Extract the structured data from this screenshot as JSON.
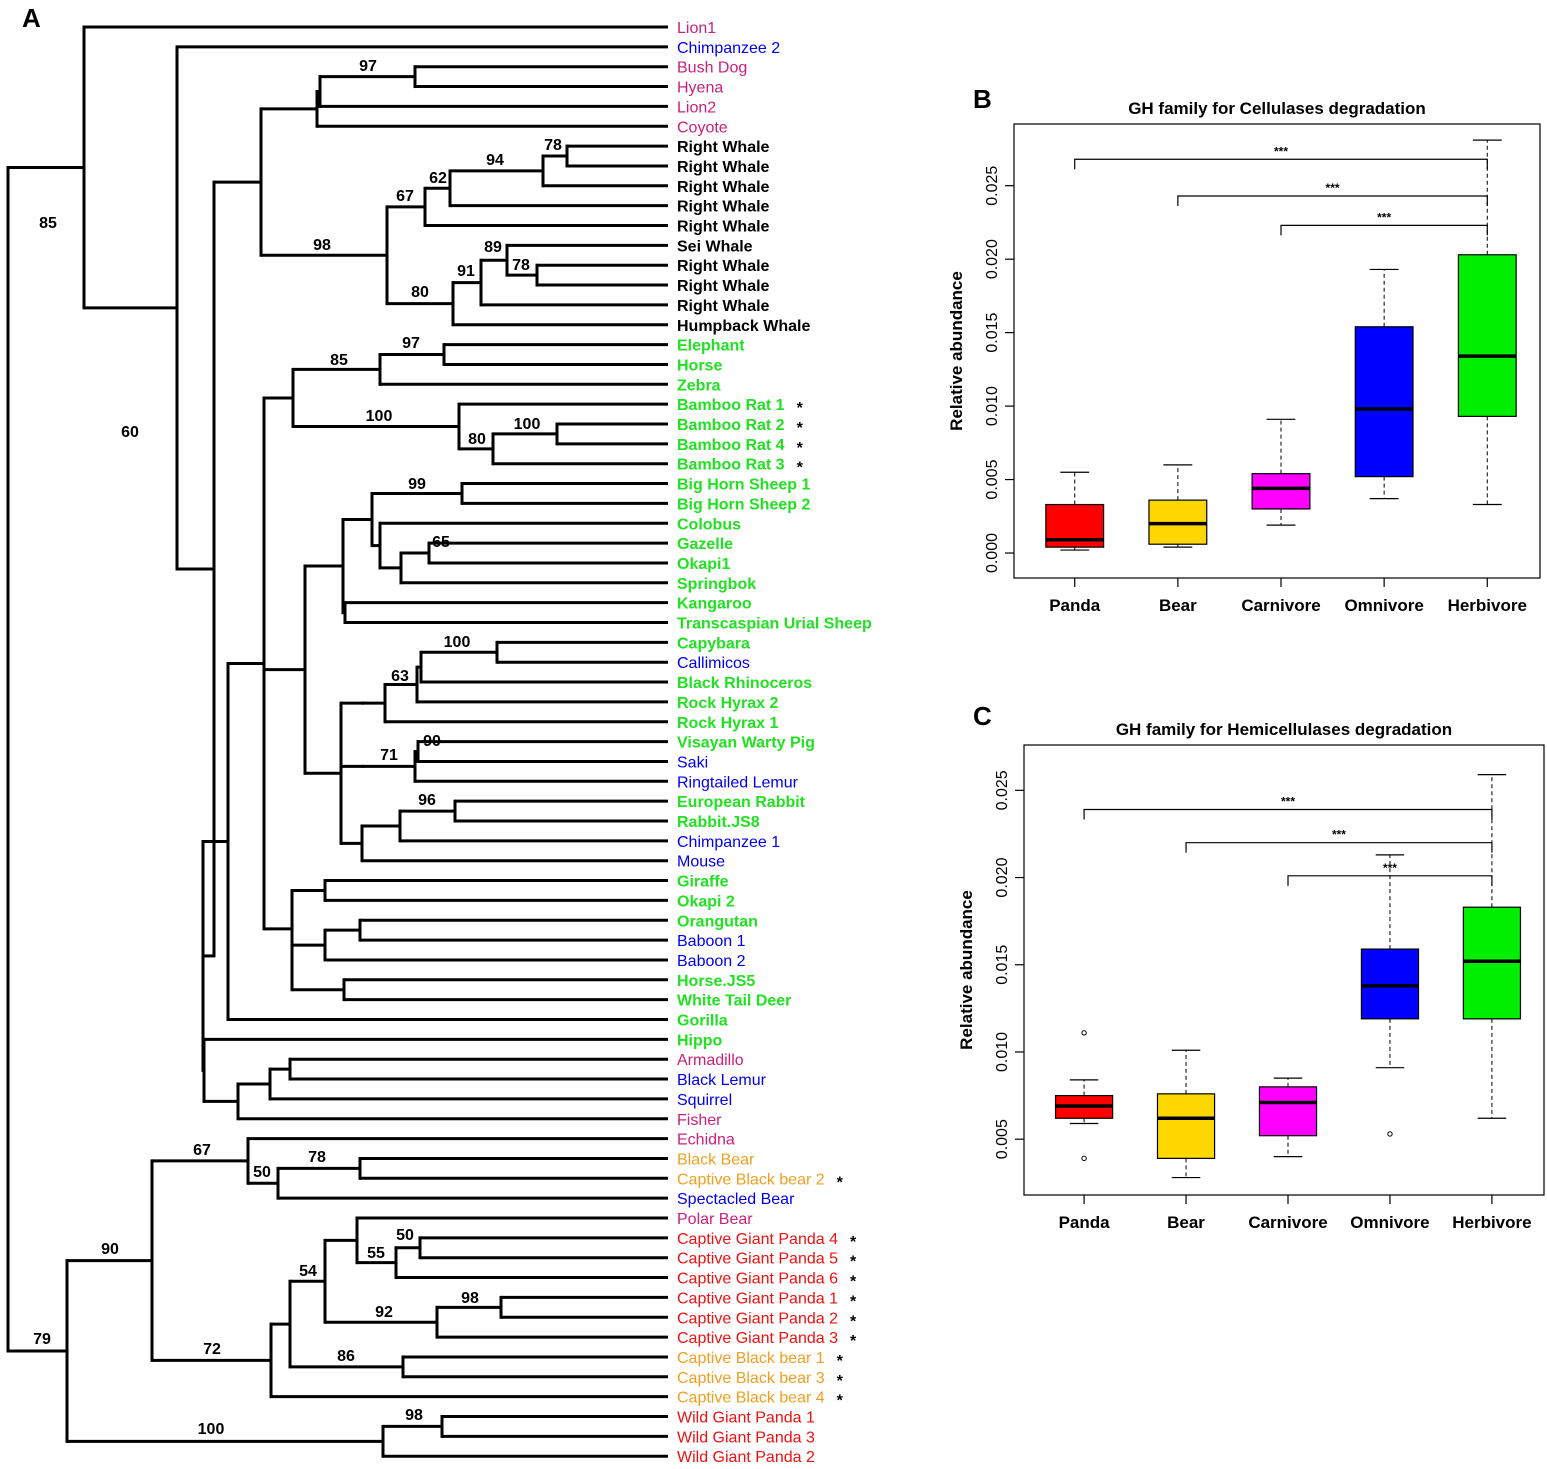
{
  "panels": {
    "a": "A",
    "b": "B",
    "c": "C"
  },
  "colors": {
    "carnivore": "#cc1f7a",
    "omnivore": "#0000ee",
    "herbivore": "#22e022",
    "panda": "#ee1111",
    "bear": "#f0a020",
    "whale": "#000000"
  },
  "tree": {
    "leaves": [
      {
        "label": "Lion1",
        "color": "#cc1f7a",
        "bold": false,
        "star": false
      },
      {
        "label": "Chimpanzee 2",
        "color": "#0000ee",
        "bold": false,
        "star": false
      },
      {
        "label": "Bush Dog",
        "color": "#cc1f7a",
        "bold": false,
        "star": false
      },
      {
        "label": "Hyena",
        "color": "#cc1f7a",
        "bold": false,
        "star": false
      },
      {
        "label": "Lion2",
        "color": "#cc1f7a",
        "bold": false,
        "star": false
      },
      {
        "label": "Coyote",
        "color": "#cc1f7a",
        "bold": false,
        "star": false
      },
      {
        "label": "Right Whale",
        "color": "#000000",
        "bold": true,
        "star": false
      },
      {
        "label": "Right Whale",
        "color": "#000000",
        "bold": true,
        "star": false
      },
      {
        "label": "Right Whale",
        "color": "#000000",
        "bold": true,
        "star": false
      },
      {
        "label": "Right Whale",
        "color": "#000000",
        "bold": true,
        "star": false
      },
      {
        "label": "Right Whale",
        "color": "#000000",
        "bold": true,
        "star": false
      },
      {
        "label": "Sei Whale",
        "color": "#000000",
        "bold": true,
        "star": false
      },
      {
        "label": "Right Whale",
        "color": "#000000",
        "bold": true,
        "star": false
      },
      {
        "label": "Right Whale",
        "color": "#000000",
        "bold": true,
        "star": false
      },
      {
        "label": "Right Whale",
        "color": "#000000",
        "bold": true,
        "star": false
      },
      {
        "label": "Humpback Whale",
        "color": "#000000",
        "bold": true,
        "star": false
      },
      {
        "label": "Elephant",
        "color": "#22e022",
        "bold": true,
        "star": false
      },
      {
        "label": "Horse",
        "color": "#22e022",
        "bold": true,
        "star": false
      },
      {
        "label": "Zebra",
        "color": "#22e022",
        "bold": true,
        "star": false
      },
      {
        "label": "Bamboo Rat 1",
        "color": "#22e022",
        "bold": true,
        "star": true
      },
      {
        "label": "Bamboo Rat 2",
        "color": "#22e022",
        "bold": true,
        "star": true
      },
      {
        "label": "Bamboo Rat 4",
        "color": "#22e022",
        "bold": true,
        "star": true
      },
      {
        "label": "Bamboo Rat 3",
        "color": "#22e022",
        "bold": true,
        "star": true
      },
      {
        "label": "Big Horn Sheep 1",
        "color": "#22e022",
        "bold": true,
        "star": false
      },
      {
        "label": "Big Horn Sheep 2",
        "color": "#22e022",
        "bold": true,
        "star": false
      },
      {
        "label": "Colobus",
        "color": "#22e022",
        "bold": true,
        "star": false
      },
      {
        "label": "Gazelle",
        "color": "#22e022",
        "bold": true,
        "star": false
      },
      {
        "label": "Okapi1",
        "color": "#22e022",
        "bold": true,
        "star": false
      },
      {
        "label": "Springbok",
        "color": "#22e022",
        "bold": true,
        "star": false
      },
      {
        "label": "Kangaroo",
        "color": "#22e022",
        "bold": true,
        "star": false
      },
      {
        "label": "Transcaspian Urial Sheep",
        "color": "#22e022",
        "bold": true,
        "star": false
      },
      {
        "label": "Capybara",
        "color": "#22e022",
        "bold": true,
        "star": false
      },
      {
        "label": "Callimicos",
        "color": "#0000ee",
        "bold": false,
        "star": false
      },
      {
        "label": "Black Rhinoceros",
        "color": "#22e022",
        "bold": true,
        "star": false
      },
      {
        "label": "Rock Hyrax 2",
        "color": "#22e022",
        "bold": true,
        "star": false
      },
      {
        "label": "Rock Hyrax 1",
        "color": "#22e022",
        "bold": true,
        "star": false
      },
      {
        "label": "Visayan Warty Pig",
        "color": "#22e022",
        "bold": true,
        "star": false
      },
      {
        "label": "Saki",
        "color": "#0000ee",
        "bold": false,
        "star": false
      },
      {
        "label": "Ringtailed Lemur",
        "color": "#0000ee",
        "bold": false,
        "star": false
      },
      {
        "label": "European Rabbit",
        "color": "#22e022",
        "bold": true,
        "star": false
      },
      {
        "label": "Rabbit.JS8",
        "color": "#22e022",
        "bold": true,
        "star": false
      },
      {
        "label": "Chimpanzee 1",
        "color": "#0000ee",
        "bold": false,
        "star": false
      },
      {
        "label": "Mouse",
        "color": "#0000ee",
        "bold": false,
        "star": false
      },
      {
        "label": "Giraffe",
        "color": "#22e022",
        "bold": true,
        "star": false
      },
      {
        "label": "Okapi 2",
        "color": "#22e022",
        "bold": true,
        "star": false
      },
      {
        "label": "Orangutan",
        "color": "#22e022",
        "bold": true,
        "star": false
      },
      {
        "label": "Baboon 1",
        "color": "#0000ee",
        "bold": false,
        "star": false
      },
      {
        "label": "Baboon 2",
        "color": "#0000ee",
        "bold": false,
        "star": false
      },
      {
        "label": "Horse.JS5",
        "color": "#22e022",
        "bold": true,
        "star": false
      },
      {
        "label": "White Tail Deer",
        "color": "#22e022",
        "bold": true,
        "star": false
      },
      {
        "label": "Gorilla",
        "color": "#22e022",
        "bold": true,
        "star": false
      },
      {
        "label": "Hippo",
        "color": "#22e022",
        "bold": true,
        "star": false
      },
      {
        "label": "Armadillo",
        "color": "#cc1f7a",
        "bold": false,
        "star": false
      },
      {
        "label": "Black Lemur",
        "color": "#0000ee",
        "bold": false,
        "star": false
      },
      {
        "label": "Squirrel",
        "color": "#0000ee",
        "bold": false,
        "star": false
      },
      {
        "label": "Fisher",
        "color": "#cc1f7a",
        "bold": false,
        "star": false
      },
      {
        "label": "Echidna",
        "color": "#cc1f7a",
        "bold": false,
        "star": false
      },
      {
        "label": "Black Bear",
        "color": "#f0a020",
        "bold": false,
        "star": false
      },
      {
        "label": "Captive Black bear 2",
        "color": "#f0a020",
        "bold": false,
        "star": true
      },
      {
        "label": "Spectacled Bear",
        "color": "#0000ee",
        "bold": false,
        "star": false
      },
      {
        "label": "Polar Bear",
        "color": "#cc1f7a",
        "bold": false,
        "star": false
      },
      {
        "label": "Captive Giant Panda 4",
        "color": "#ee1111",
        "bold": false,
        "star": true
      },
      {
        "label": "Captive Giant Panda 5",
        "color": "#ee1111",
        "bold": false,
        "star": true
      },
      {
        "label": "Captive Giant Panda 6",
        "color": "#ee1111",
        "bold": false,
        "star": true
      },
      {
        "label": "Captive Giant Panda 1",
        "color": "#ee1111",
        "bold": false,
        "star": true
      },
      {
        "label": "Captive Giant Panda 2",
        "color": "#ee1111",
        "bold": false,
        "star": true
      },
      {
        "label": "Captive Giant Panda 3",
        "color": "#ee1111",
        "bold": false,
        "star": true
      },
      {
        "label": "Captive Black bear 1",
        "color": "#f0a020",
        "bold": false,
        "star": true
      },
      {
        "label": "Captive Black bear 3",
        "color": "#f0a020",
        "bold": false,
        "star": true
      },
      {
        "label": "Captive Black bear 4",
        "color": "#f0a020",
        "bold": false,
        "star": true
      },
      {
        "label": "Wild Giant Panda 1",
        "color": "#ee1111",
        "bold": false,
        "star": false
      },
      {
        "label": "Wild Giant Panda 3",
        "color": "#ee1111",
        "bold": false,
        "star": false
      },
      {
        "label": "Wild Giant Panda 2",
        "color": "#ee1111",
        "bold": false,
        "star": false
      }
    ],
    "star_symbol": "*",
    "bootstrap": [
      "85",
      "97",
      "78",
      "94",
      "62",
      "67",
      "98",
      "89",
      "78",
      "91",
      "80",
      "60",
      "97",
      "85",
      "100",
      "100",
      "80",
      "99",
      "65",
      "100",
      "63",
      "71",
      "90",
      "96",
      "67",
      "78",
      "50",
      "90",
      "50",
      "55",
      "54",
      "98",
      "92",
      "86",
      "72",
      "79",
      "98",
      "100"
    ]
  },
  "chart_data": [
    {
      "type": "box",
      "title": "GH family for Cellulases degradation",
      "ylabel": "Relative abundance",
      "categories": [
        "Panda",
        "Bear",
        "Carnivore",
        "Omnivore",
        "Herbivore"
      ],
      "colors": [
        "#ff0000",
        "#ffd700",
        "#ff00ff",
        "#0000ff",
        "#00ee00"
      ],
      "ylim": [
        -0.0017,
        0.0292
      ],
      "yticks": [
        "0.000",
        "0.005",
        "0.010",
        "0.015",
        "0.020",
        "0.025"
      ],
      "boxes": [
        {
          "min": 0.0002,
          "q1": 0.0004,
          "median": 0.0009,
          "q3": 0.0033,
          "max": 0.0055,
          "outliers": []
        },
        {
          "min": 0.0004,
          "q1": 0.0006,
          "median": 0.002,
          "q3": 0.0036,
          "max": 0.006,
          "outliers": []
        },
        {
          "min": 0.0019,
          "q1": 0.003,
          "median": 0.0044,
          "q3": 0.0054,
          "max": 0.0091,
          "outliers": []
        },
        {
          "min": 0.0037,
          "q1": 0.0052,
          "median": 0.0098,
          "q3": 0.0154,
          "max": 0.0193,
          "outliers": []
        },
        {
          "min": 0.0033,
          "q1": 0.0093,
          "median": 0.0134,
          "q3": 0.0203,
          "max": 0.0281,
          "outliers": []
        }
      ],
      "significance": [
        {
          "from": 0,
          "to": 4,
          "y": 0.0268,
          "label": "***"
        },
        {
          "from": 1,
          "to": 4,
          "y": 0.0243,
          "label": "***"
        },
        {
          "from": 2,
          "to": 4,
          "y": 0.0223,
          "label": "***"
        }
      ]
    },
    {
      "type": "box",
      "title": "GH family for Hemicellulases degradation",
      "ylabel": "Relative abundance",
      "categories": [
        "Panda",
        "Bear",
        "Carnivore",
        "Omnivore",
        "Herbivore"
      ],
      "colors": [
        "#ff0000",
        "#ffd700",
        "#ff00ff",
        "#0000ff",
        "#00ee00"
      ],
      "ylim": [
        0.0018,
        0.0276
      ],
      "yticks": [
        "0.005",
        "0.010",
        "0.015",
        "0.020",
        "0.025"
      ],
      "boxes": [
        {
          "min": 0.0059,
          "q1": 0.0062,
          "median": 0.0069,
          "q3": 0.0075,
          "max": 0.0084,
          "outliers": [
            0.0111,
            0.0039
          ]
        },
        {
          "min": 0.0028,
          "q1": 0.0039,
          "median": 0.0062,
          "q3": 0.0076,
          "max": 0.0101,
          "outliers": []
        },
        {
          "min": 0.004,
          "q1": 0.0052,
          "median": 0.0071,
          "q3": 0.008,
          "max": 0.0085,
          "outliers": []
        },
        {
          "min": 0.0091,
          "q1": 0.0119,
          "median": 0.0138,
          "q3": 0.0159,
          "max": 0.0213,
          "outliers": [
            0.0053
          ]
        },
        {
          "min": 0.0062,
          "q1": 0.0119,
          "median": 0.0152,
          "q3": 0.0183,
          "max": 0.0259,
          "outliers": []
        }
      ],
      "significance": [
        {
          "from": 0,
          "to": 4,
          "y": 0.0239,
          "label": "***"
        },
        {
          "from": 1,
          "to": 4,
          "y": 0.022,
          "label": "***"
        },
        {
          "from": 2,
          "to": 4,
          "y": 0.0201,
          "label": "***"
        }
      ]
    }
  ]
}
